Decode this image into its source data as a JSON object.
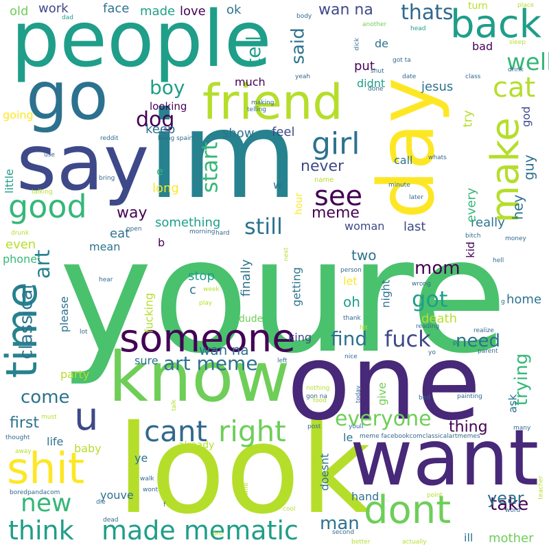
{
  "palette": {
    "purple": "#440154",
    "indigo": "#482878",
    "blue": "#3e4989",
    "steel": "#31688e",
    "teal": "#26828e",
    "seagreen": "#1f9e89",
    "green": "#35b779",
    "lightgreen": "#6ece58",
    "lime": "#b5de2b",
    "yellow": "#fde725"
  },
  "words": {
    "youre": "youre",
    "im": "im",
    "say": "say",
    "day": "day",
    "people": "people",
    "look": "look",
    "one": "one",
    "want": "want",
    "know": "know",
    "go": "go",
    "friend": "friend",
    "someone": "someone",
    "time": "time",
    "make": "make",
    "back": "back",
    "shit": "shit",
    "good": "good",
    "dont": "dont",
    "made_mematic": "made mematic",
    "think": "think",
    "u": "u",
    "cant": "cant",
    "right": "right",
    "girl": "girl",
    "cat": "cat",
    "see": "see",
    "new": "new",
    "well": "well",
    "thats": "thats",
    "dog": "dog",
    "everyone": "everyone",
    "art": "art",
    "art_meme": "art meme",
    "find": "find",
    "fuck": "fuck",
    "got": "got",
    "still": "still",
    "start": "start",
    "boy": "boy",
    "classical": "classical",
    "come": "come",
    "need": "need",
    "trying": "trying",
    "take": "take",
    "year": "year",
    "mom": "mom",
    "man": "man",
    "tell": "tell",
    "said": "said",
    "wan_na_top": "wan na",
    "wan_na_mid": "wan na",
    "old": "old",
    "work": "work",
    "face": "face",
    "made": "made",
    "love": "love",
    "ok": "ok",
    "turn": "turn",
    "place": "place",
    "body": "body",
    "dad": "dad",
    "another": "another",
    "head": "head",
    "sleep": "sleep",
    "bad": "bad",
    "de": "de",
    "put": "put",
    "didnt": "didnt",
    "much": "much",
    "jesus": "jesus",
    "god": "god",
    "try": "try",
    "hey": "hey",
    "guy": "guy",
    "feel": "feel",
    "show": "show",
    "keep": "keep",
    "looking": "looking",
    "going": "going",
    "never": "never",
    "call": "call",
    "little": "little",
    "long": "long",
    "e": "e",
    "w": "w",
    "way": "way",
    "something": "something",
    "meme": "meme",
    "woman": "woman",
    "last": "last",
    "really": "really",
    "every": "every",
    "kid": "kid",
    "hour": "hour",
    "eat": "eat",
    "mean": "mean",
    "b": "b",
    "even": "even",
    "phone": "phone",
    "stop": "stop",
    "c": "c",
    "finally": "finally",
    "two": "two",
    "let": "let",
    "oh": "oh",
    "getting": "getting",
    "night": "night",
    "please": "please",
    "fucking": "fucking",
    "dude": "dude",
    "home": "home",
    "death": "death",
    "king": "king",
    "party": "party",
    "sure": "sure",
    "ask": "ask",
    "first": "first",
    "thing": "thing",
    "give": "give",
    "life": "life",
    "le": "le",
    "baby": "baby",
    "already": "already",
    "ye": "ye",
    "doesnt": "doesnt",
    "youve": "youve",
    "hand": "hand",
    "ill": "ill",
    "mother": "mother",
    "name": "name",
    "bring": "bring",
    "talking": "talking",
    "use": "use",
    "reddit": "reddit",
    "living_spain": "living spain",
    "telling": "telling",
    "making": "making",
    "minute": "minute",
    "later": "later",
    "whats": "whats",
    "drunk": "drunk",
    "open": "open",
    "morning": "morning",
    "hard": "hard",
    "next": "next",
    "bitch": "bitch",
    "money": "money",
    "hell": "hell",
    "wrong": "wrong",
    "person": "person",
    "hear": "hear",
    "week": "week",
    "play": "play",
    "g": "g",
    "thank": "thank",
    "reading": "reading",
    "hit": "hit",
    "realize": "realize",
    "lot": "lot",
    "p": "p",
    "yo": "yo",
    "parent": "parent",
    "left": "left",
    "nice": "nice",
    "nothing": "nothing",
    "gon_na": "gon na",
    "food": "food",
    "today": "today",
    "bed": "bed",
    "painting": "painting",
    "must": "must",
    "talk": "talk",
    "thought": "thought",
    "away": "away",
    "post": "post",
    "youll": "youll",
    "meme_facebook": "meme facebookcomclassicalartmemes",
    "many": "many",
    "walk": "walk",
    "wont": "wont",
    "boredpandacom": "boredpandacom",
    "die": "die",
    "f": "f",
    "wife": "wife",
    "dead": "dead",
    "bro": "bro",
    "cool": "cool",
    "point": "point",
    "word": "word",
    "teacher": "teacher",
    "second": "second",
    "better": "better",
    "actually": "actually",
    "shut": "shut",
    "done": "done",
    "date": "date",
    "dick": "dick",
    "got_ta": "got ta",
    "yeah": "yeah",
    "class": "class",
    "drink": "drink"
  }
}
